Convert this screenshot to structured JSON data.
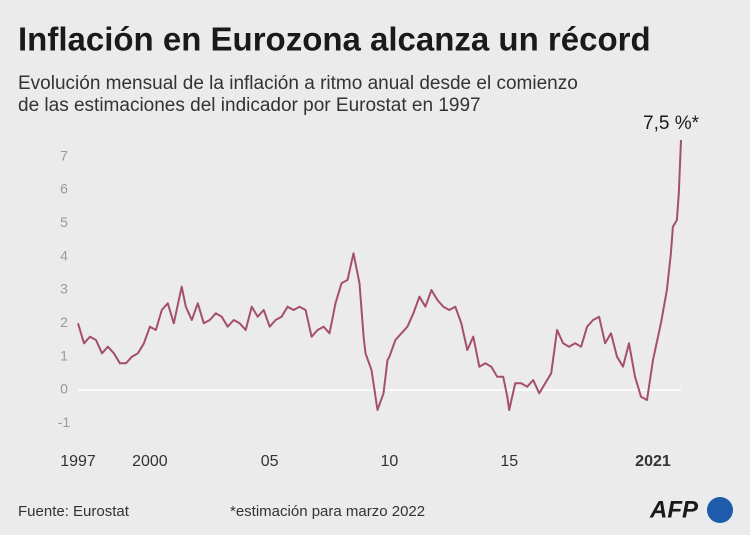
{
  "chart_data": {
    "type": "line",
    "title": "Inflación en Eurozona alcanza un récord",
    "subtitle": [
      "Evolución mensual de la inflación a ritmo anual desde el comienzo",
      "de las estimaciones del indicador por Eurostat en 1997"
    ],
    "annotation": "7,5 %*",
    "source": "Fuente: Eurostat",
    "note": "*estimación para marzo 2022",
    "logo": "AFP",
    "x": [
      1997,
      1997.25,
      1997.5,
      1997.75,
      1998,
      1998.25,
      1998.5,
      1998.75,
      1999,
      1999.25,
      1999.5,
      1999.75,
      2000,
      2000.25,
      2000.5,
      2000.75,
      2001,
      2001.33,
      2001.5,
      2001.75,
      2002,
      2002.25,
      2002.5,
      2002.75,
      2003,
      2003.25,
      2003.5,
      2003.75,
      2004,
      2004.25,
      2004.5,
      2004.75,
      2005,
      2005.25,
      2005.5,
      2005.75,
      2006,
      2006.25,
      2006.5,
      2006.75,
      2007,
      2007.25,
      2007.5,
      2007.75,
      2008,
      2008.25,
      2008.5,
      2008.75,
      2008.92,
      2009,
      2009.25,
      2009.5,
      2009.75,
      2009.92,
      2010,
      2010.25,
      2010.5,
      2010.75,
      2011,
      2011.25,
      2011.5,
      2011.75,
      2012,
      2012.25,
      2012.5,
      2012.75,
      2013,
      2013.25,
      2013.5,
      2013.75,
      2014,
      2014.25,
      2014.5,
      2014.75,
      2014.92,
      2015,
      2015.25,
      2015.5,
      2015.75,
      2016,
      2016.25,
      2016.5,
      2016.75,
      2017,
      2017.25,
      2017.5,
      2017.75,
      2018,
      2018.25,
      2018.5,
      2018.75,
      2019,
      2019.25,
      2019.5,
      2019.75,
      2020,
      2020.25,
      2020.5,
      2020.75,
      2021,
      2021.33,
      2021.58,
      2021.75,
      2021.83,
      2021.92,
      2022,
      2022.08,
      2022.17
    ],
    "series": [
      {
        "name": "Inflación",
        "color": "#a5506a",
        "values": [
          2.0,
          1.4,
          1.6,
          1.5,
          1.1,
          1.3,
          1.1,
          0.8,
          0.8,
          1.0,
          1.1,
          1.4,
          1.9,
          1.8,
          2.4,
          2.6,
          2.0,
          3.1,
          2.5,
          2.1,
          2.6,
          2.0,
          2.1,
          2.3,
          2.2,
          1.9,
          2.1,
          2.0,
          1.8,
          2.5,
          2.2,
          2.4,
          1.9,
          2.1,
          2.2,
          2.5,
          2.4,
          2.5,
          2.4,
          1.6,
          1.8,
          1.9,
          1.7,
          2.6,
          3.2,
          3.3,
          4.1,
          3.2,
          1.6,
          1.1,
          0.6,
          -0.6,
          -0.1,
          0.9,
          1.0,
          1.5,
          1.7,
          1.9,
          2.3,
          2.8,
          2.5,
          3.0,
          2.7,
          2.5,
          2.4,
          2.5,
          2.0,
          1.2,
          1.6,
          0.7,
          0.8,
          0.7,
          0.4,
          0.4,
          -0.2,
          -0.6,
          0.2,
          0.2,
          0.1,
          0.3,
          -0.1,
          0.2,
          0.5,
          1.8,
          1.4,
          1.3,
          1.4,
          1.3,
          1.9,
          2.1,
          2.2,
          1.4,
          1.7,
          1.0,
          0.7,
          1.4,
          0.4,
          -0.2,
          -0.3,
          0.9,
          2.0,
          3.0,
          4.1,
          4.9,
          5.0,
          5.1,
          5.9,
          7.5
        ]
      }
    ],
    "xlim": [
      1997,
      2022.17
    ],
    "xticks": [
      1997,
      2000,
      {
        "value": 2005,
        "label": "05"
      },
      {
        "value": 2010,
        "label": "10"
      },
      {
        "value": 2015,
        "label": "15"
      },
      2021
    ],
    "ylim": [
      -1.5,
      7.5
    ],
    "yticks": [
      -1,
      0,
      1,
      2,
      3,
      4,
      5,
      6,
      7
    ]
  }
}
